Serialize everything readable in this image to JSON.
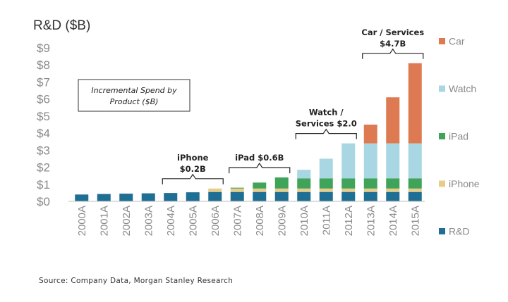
{
  "chart_data": {
    "type": "bar",
    "stacked": true,
    "ylabel": "R&D ($B)",
    "ylim": [
      0,
      9
    ],
    "yticks": [
      "$0",
      "$1",
      "$2",
      "$3",
      "$4",
      "$5",
      "$6",
      "$7",
      "$8",
      "$9"
    ],
    "categories": [
      "2000A",
      "2001A",
      "2002A",
      "2003A",
      "2004A",
      "2005A",
      "2006A",
      "2007A",
      "2008A",
      "2009A",
      "2010A",
      "2011A",
      "2012A",
      "2013A",
      "2014A",
      "2015A"
    ],
    "series": [
      {
        "name": "R&D",
        "color": "#1f6e94",
        "values": [
          0.4,
          0.43,
          0.45,
          0.47,
          0.49,
          0.53,
          0.55,
          0.55,
          0.55,
          0.55,
          0.55,
          0.55,
          0.55,
          0.55,
          0.55,
          0.55
        ]
      },
      {
        "name": "iPhone",
        "color": "#e7cc8c",
        "values": [
          0,
          0,
          0,
          0,
          0,
          0,
          0.2,
          0.2,
          0.2,
          0.2,
          0.2,
          0.2,
          0.2,
          0.2,
          0.2,
          0.2
        ]
      },
      {
        "name": "iPad",
        "color": "#3fa35a",
        "values": [
          0,
          0,
          0,
          0,
          0,
          0,
          0,
          0.05,
          0.35,
          0.65,
          0.6,
          0.6,
          0.6,
          0.6,
          0.6,
          0.6
        ]
      },
      {
        "name": "Watch",
        "color": "#a8d7e3",
        "values": [
          0,
          0,
          0,
          0,
          0,
          0,
          0,
          0,
          0,
          0,
          0.5,
          1.15,
          2.05,
          2.05,
          2.05,
          2.05
        ]
      },
      {
        "name": "Car",
        "color": "#de7a52",
        "values": [
          0,
          0,
          0,
          0,
          0,
          0,
          0,
          0,
          0,
          0,
          0,
          0,
          0,
          1.1,
          2.7,
          4.7
        ]
      }
    ],
    "legend_order": [
      "Car",
      "Watch",
      "iPad",
      "iPhone",
      "R&D"
    ],
    "legend_position": "right",
    "grid": false,
    "note_box": [
      "Incremental Spend by",
      "Product ($B)"
    ],
    "annotations": [
      {
        "lines": [
          "iPhone",
          "$0.2B"
        ],
        "from": "2004A",
        "to": "2006A"
      },
      {
        "lines": [
          "iPad $0.6B"
        ],
        "from": "2007A",
        "to": "2009A"
      },
      {
        "lines": [
          "Watch /",
          "Services $2.0"
        ],
        "from": "2010A",
        "to": "2012A"
      },
      {
        "lines": [
          "Car / Services",
          "$4.7B"
        ],
        "from": "2013A",
        "to": "2015A"
      }
    ]
  },
  "source": "Source: Company Data, Morgan Stanley Research"
}
